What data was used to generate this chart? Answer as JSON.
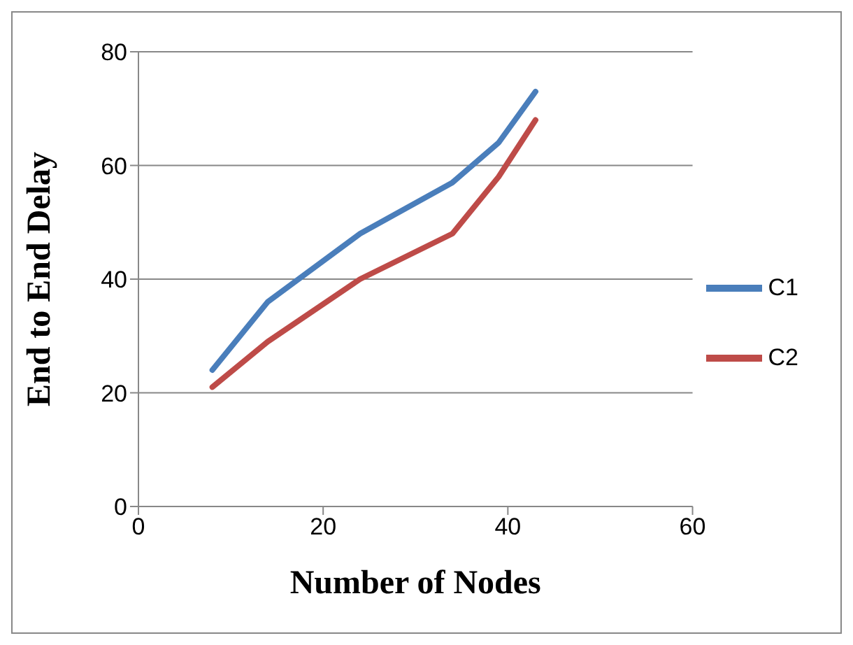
{
  "chart_data": {
    "type": "line",
    "xlabel": "Number of Nodes",
    "ylabel": "End to End Delay",
    "x": [
      8,
      14,
      24,
      34,
      39,
      43
    ],
    "series": [
      {
        "name": "C1",
        "color": "#4a7ebb",
        "values": [
          24,
          36,
          48,
          57,
          64,
          73
        ]
      },
      {
        "name": "C2",
        "color": "#be4b48",
        "values": [
          21,
          29,
          40,
          48,
          58,
          68
        ]
      }
    ],
    "xlim": [
      0,
      60
    ],
    "xticks": [
      0,
      20,
      40,
      60
    ],
    "ylim": [
      0,
      80
    ],
    "yticks": [
      0,
      20,
      40,
      60,
      80
    ],
    "grid": "y",
    "legend": "right",
    "marker": "none",
    "line_style": "solid"
  }
}
